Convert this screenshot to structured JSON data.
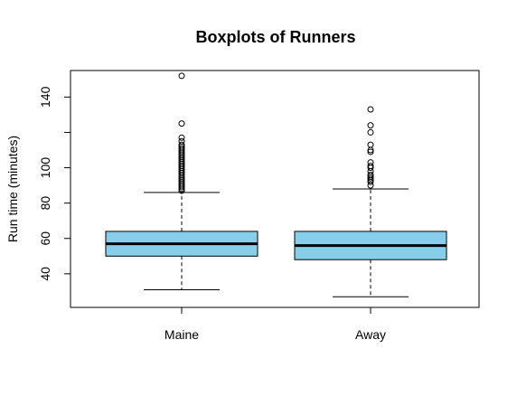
{
  "chart_data": {
    "type": "boxplot",
    "title": "Boxplots of Runners",
    "xlabel": "",
    "ylabel": "Run time (minutes)",
    "ylim": [
      21,
      155
    ],
    "yticks": [
      40,
      60,
      80,
      100,
      120,
      140
    ],
    "ytick_labels": [
      "40",
      "60",
      "80",
      "100",
      "",
      "140"
    ],
    "categories": [
      "Maine",
      "Away"
    ],
    "box_fill": "#87ceeb",
    "grid": false,
    "boxes": [
      {
        "name": "Maine",
        "whisker_low": 31,
        "q1": 50,
        "median": 57,
        "q3": 64,
        "whisker_high": 86,
        "outliers": [
          87,
          88,
          89,
          90,
          91,
          92,
          93,
          94,
          95,
          96,
          97,
          98,
          99,
          100,
          101,
          102,
          103,
          104,
          105,
          106,
          107,
          108,
          109,
          110,
          111,
          112,
          113,
          115,
          117,
          125,
          152
        ]
      },
      {
        "name": "Away",
        "whisker_low": 27,
        "q1": 48,
        "median": 56,
        "q3": 64,
        "whisker_high": 88,
        "outliers": [
          90,
          92,
          93,
          94,
          95,
          96,
          98,
          100,
          101,
          103,
          109,
          110,
          113,
          120,
          124,
          133
        ]
      }
    ]
  }
}
